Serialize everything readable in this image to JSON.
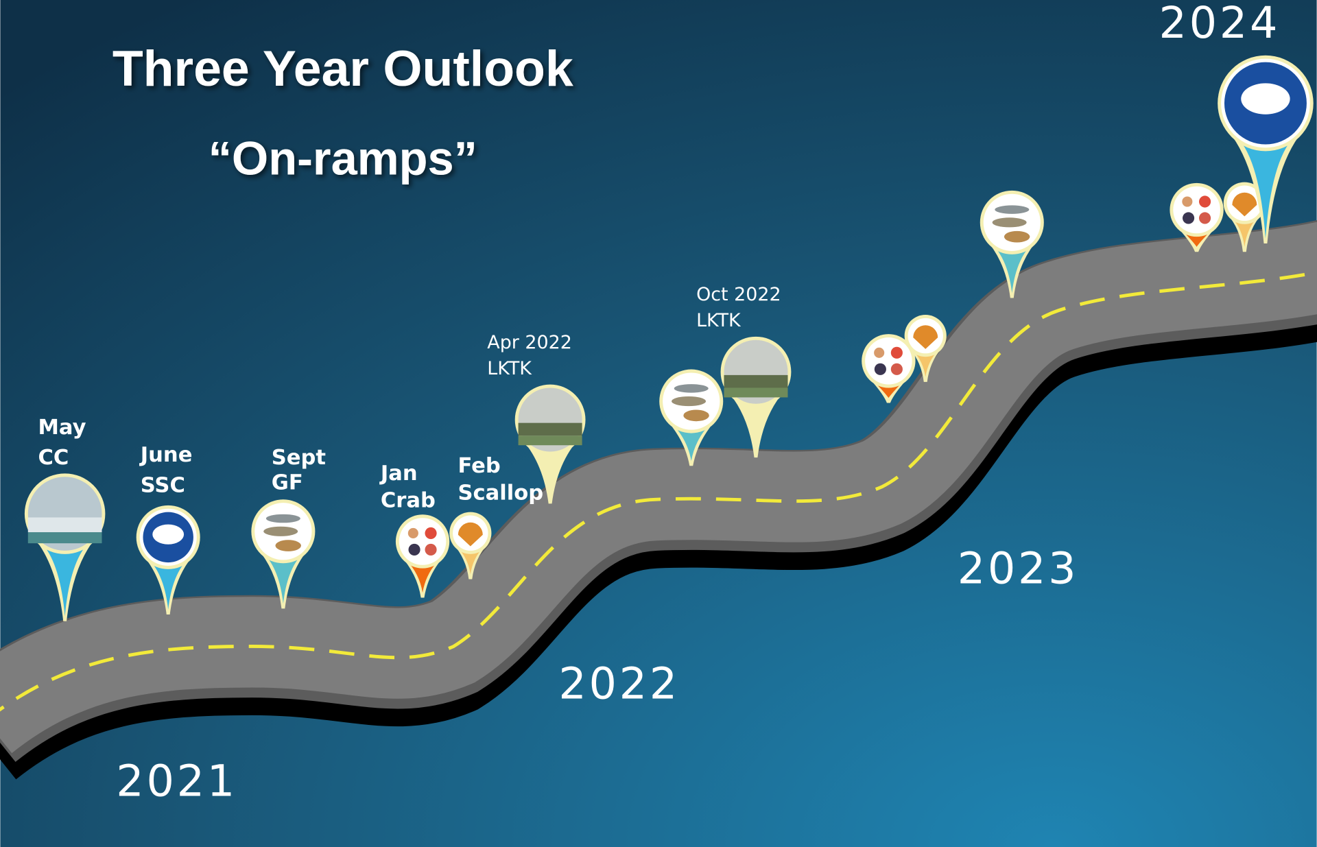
{
  "title": "Three Year Outlook",
  "subtitle": "“On-ramps”",
  "years": [
    "2021",
    "2022",
    "2023",
    "2024"
  ],
  "milestones": [
    {
      "lines": [
        "May",
        "CC"
      ]
    },
    {
      "lines": [
        "June",
        "SSC"
      ]
    },
    {
      "lines": [
        "Sept",
        "GF"
      ]
    },
    {
      "lines": [
        "Jan",
        "Crab"
      ]
    },
    {
      "lines": [
        "Feb",
        "Scallop"
      ]
    },
    {
      "lines": [
        "Apr 2022",
        "LKTK"
      ]
    },
    {
      "lines": [
        "Oct 2022",
        "LKTK"
      ]
    }
  ]
}
